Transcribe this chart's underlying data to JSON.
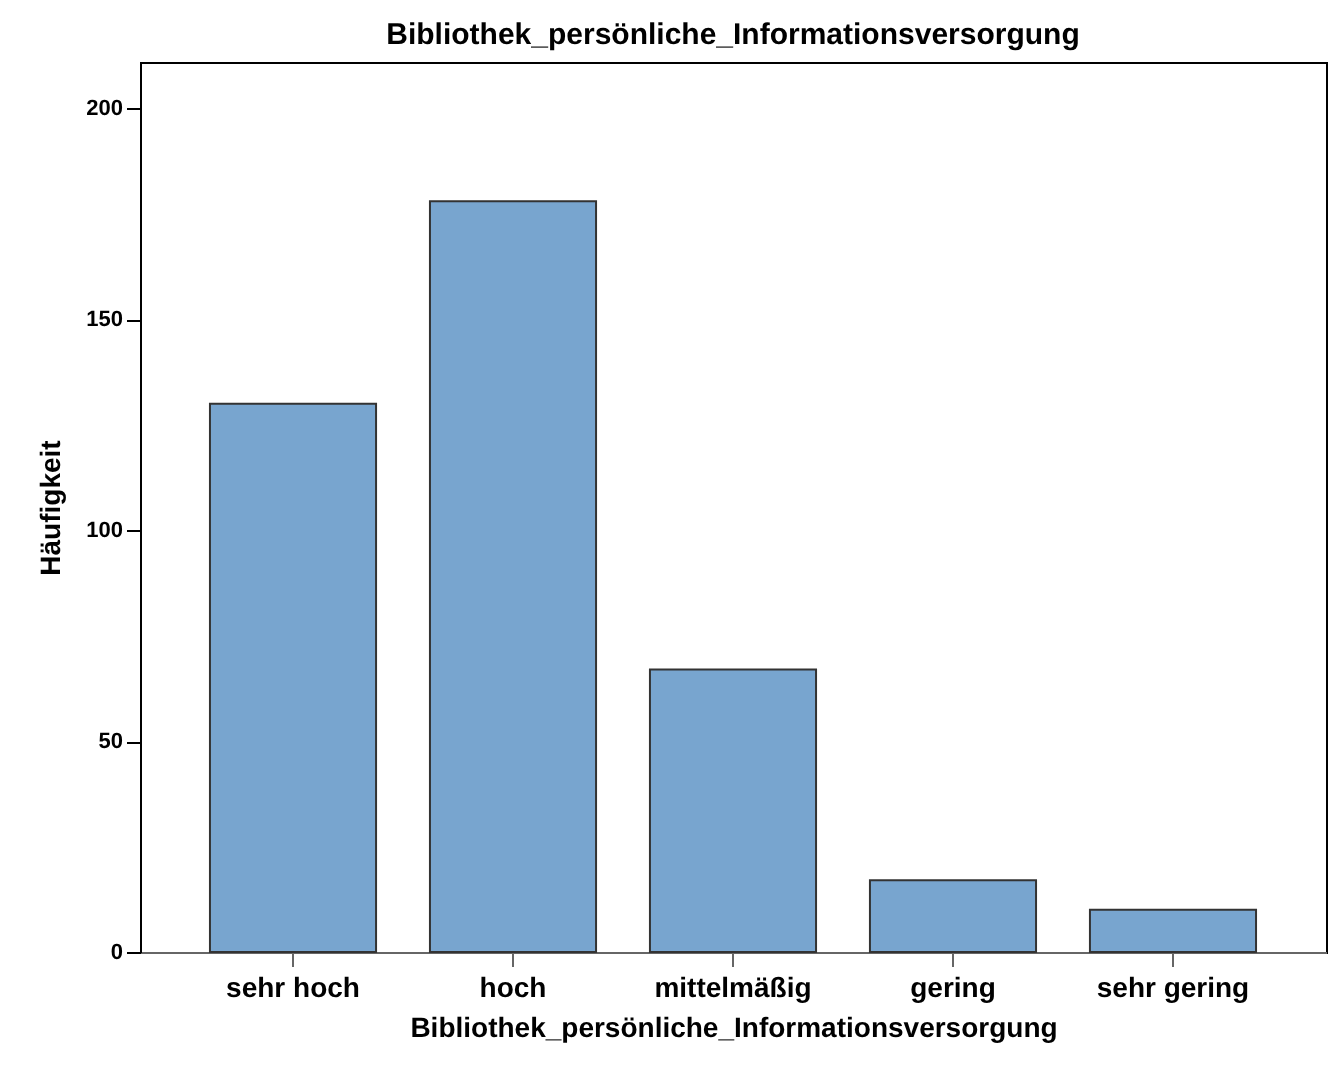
{
  "chart_data": {
    "type": "bar",
    "title": "Bibliothek_persönliche_Informationsversorgung",
    "xlabel": "Bibliothek_persönliche_Informationsversorgung",
    "ylabel": "Häufigkeit",
    "categories": [
      "sehr hoch",
      "hoch",
      "mittelmäßig",
      "gering",
      "sehr gering"
    ],
    "values": [
      130,
      178,
      67,
      17,
      10
    ],
    "color": "#78a5cf",
    "ylim": [
      0,
      211
    ],
    "yticks": [
      0,
      50,
      100,
      150,
      200
    ]
  }
}
